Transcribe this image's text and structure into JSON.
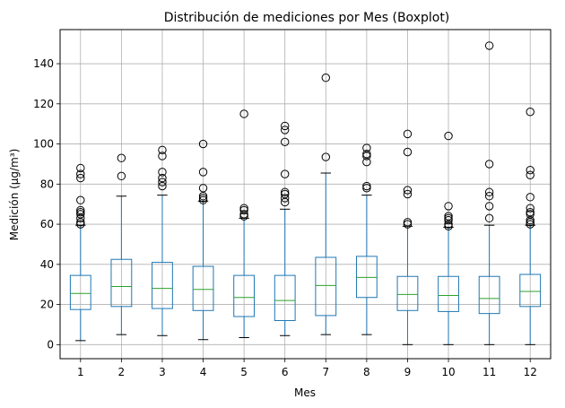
{
  "chart_data": {
    "type": "boxplot",
    "title": "Distribución de mediciones por Mes (Boxplot)",
    "xlabel": "Mes",
    "ylabel": "Medición (µg/m³)",
    "ylim": [
      -7,
      157
    ],
    "yticks": [
      0,
      20,
      40,
      60,
      80,
      100,
      120,
      140
    ],
    "grid": true,
    "colors": {
      "box": "#1f77b4",
      "median": "#2ca02c",
      "flier": "#000000",
      "grid": "#b0b0b0"
    },
    "categories": [
      "1",
      "2",
      "3",
      "4",
      "5",
      "6",
      "7",
      "8",
      "9",
      "10",
      "11",
      "12"
    ],
    "boxes": [
      {
        "label": "1",
        "whislo": 2,
        "q1": 17.5,
        "med": 25.5,
        "q3": 34.5,
        "whishi": 59.5,
        "fliers": [
          60,
          61,
          63,
          65,
          66,
          67,
          72,
          83,
          85,
          88
        ]
      },
      {
        "label": "2",
        "whislo": 5,
        "q1": 19,
        "med": 29,
        "q3": 42.5,
        "whishi": 74,
        "fliers": [
          84,
          93
        ]
      },
      {
        "label": "3",
        "whislo": 4.5,
        "q1": 18,
        "med": 28,
        "q3": 41,
        "whishi": 74.5,
        "fliers": [
          79,
          81,
          83,
          86,
          94,
          97
        ]
      },
      {
        "label": "4",
        "whislo": 2.5,
        "q1": 17,
        "med": 27.5,
        "q3": 39,
        "whishi": 71.5,
        "fliers": [
          72,
          73,
          74,
          78,
          86,
          100
        ]
      },
      {
        "label": "5",
        "whislo": 3.5,
        "q1": 14,
        "med": 23.5,
        "q3": 34.5,
        "whishi": 63,
        "fliers": [
          64,
          65,
          67,
          68,
          115
        ]
      },
      {
        "label": "6",
        "whislo": 4.5,
        "q1": 12,
        "med": 22,
        "q3": 34.5,
        "whishi": 67.5,
        "fliers": [
          71,
          73,
          75,
          76,
          85,
          101,
          107,
          109
        ]
      },
      {
        "label": "7",
        "whislo": 5,
        "q1": 14.5,
        "med": 29.5,
        "q3": 43.5,
        "whishi": 85.5,
        "fliers": [
          93.5,
          133
        ]
      },
      {
        "label": "8",
        "whislo": 5,
        "q1": 23.5,
        "med": 33.5,
        "q3": 44,
        "whishi": 74.5,
        "fliers": [
          78,
          79,
          91,
          94,
          95,
          98
        ]
      },
      {
        "label": "9",
        "whislo": 0,
        "q1": 17,
        "med": 25,
        "q3": 34,
        "whishi": 59,
        "fliers": [
          60,
          61,
          75,
          77,
          96,
          105
        ]
      },
      {
        "label": "10",
        "whislo": 0,
        "q1": 16.5,
        "med": 24.5,
        "q3": 34,
        "whishi": 58.5,
        "fliers": [
          59,
          60,
          62,
          63,
          64,
          69,
          104
        ]
      },
      {
        "label": "11",
        "whislo": 0,
        "q1": 15.5,
        "med": 23,
        "q3": 34,
        "whishi": 59.5,
        "fliers": [
          63,
          69,
          74,
          76,
          90,
          149
        ]
      },
      {
        "label": "12",
        "whislo": 0,
        "q1": 19,
        "med": 26.5,
        "q3": 35,
        "whishi": 59.5,
        "fliers": [
          60,
          61,
          62,
          65,
          66,
          68,
          73.5,
          84.5,
          87,
          116
        ]
      }
    ]
  }
}
